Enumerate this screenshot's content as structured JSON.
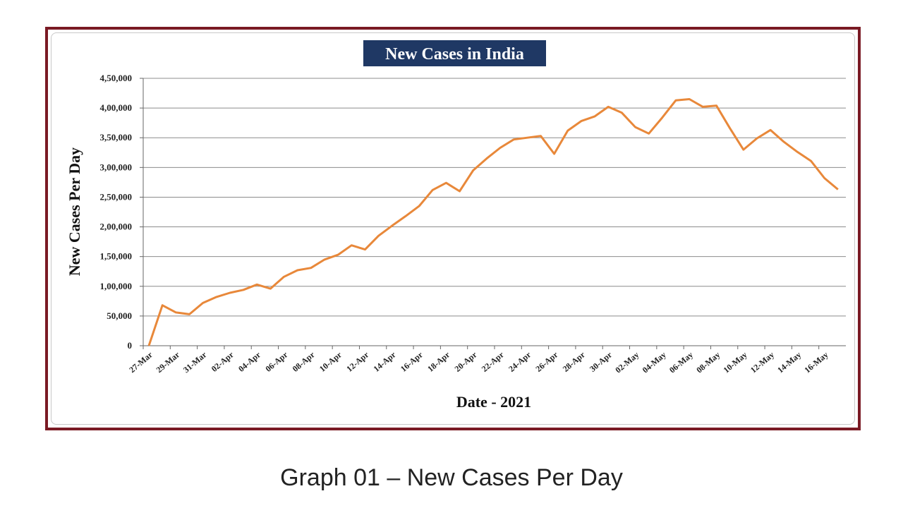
{
  "caption": "Graph 01 – New Cases Per Day",
  "colors": {
    "frame": "#7a1a24",
    "title_bg": "#1f3864",
    "line": "#e8883a",
    "grid": "#8c8c8c"
  },
  "chart_data": {
    "type": "line",
    "title": "New Cases in India",
    "xlabel": "Date - 2021",
    "ylabel": "New Cases Per Day",
    "ylim": [
      0,
      450000
    ],
    "yticks": [
      0,
      50000,
      100000,
      150000,
      200000,
      250000,
      300000,
      350000,
      400000,
      450000
    ],
    "ytick_labels": [
      "0",
      "50,000",
      "1,00,000",
      "1,50,000",
      "2,00,000",
      "2,50,000",
      "3,00,000",
      "3,50,000",
      "4,00,000",
      "4,50,000"
    ],
    "xtick_labels": [
      "27-Mar",
      "29-Mar",
      "31-Mar",
      "02-Apr",
      "04-Apr",
      "06-Apr",
      "08-Apr",
      "10-Apr",
      "12-Apr",
      "14-Apr",
      "16-Apr",
      "18-Apr",
      "20-Apr",
      "22-Apr",
      "24-Apr",
      "26-Apr",
      "28-Apr",
      "30-Apr",
      "02-May",
      "04-May",
      "06-May",
      "08-May",
      "10-May",
      "12-May",
      "14-May",
      "16-May"
    ],
    "grid": true,
    "legend": "none",
    "series": [
      {
        "values": [
          0,
          68000,
          56000,
          53000,
          72000,
          82000,
          89000,
          94000,
          103000,
          96000,
          116000,
          127000,
          131000,
          145000,
          153000,
          169000,
          162000,
          185000,
          202000,
          218000,
          235000,
          262000,
          274000,
          260000,
          295000,
          315000,
          333000,
          347000,
          350000,
          353000,
          323000,
          362000,
          378000,
          386000,
          402000,
          392000,
          368000,
          357000,
          384000,
          413000,
          415000,
          402000,
          404000,
          366000,
          330000,
          349000,
          363000,
          343000,
          326000,
          311000,
          282000,
          263000
        ]
      }
    ]
  }
}
